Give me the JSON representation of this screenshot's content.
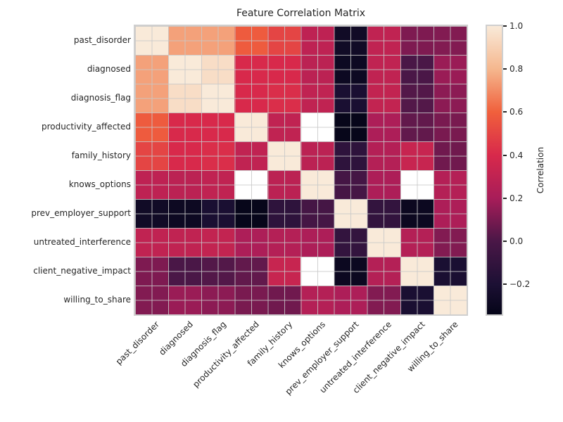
{
  "chart_data": {
    "type": "heatmap",
    "title": "Feature Correlation Matrix",
    "colorbar_label": "Correlation",
    "colorbar_ticks": [
      {
        "value": 1.0,
        "label": "1.0"
      },
      {
        "value": 0.8,
        "label": "0.8"
      },
      {
        "value": 0.6,
        "label": "0.6"
      },
      {
        "value": 0.4,
        "label": "0.4"
      },
      {
        "value": 0.2,
        "label": "0.2"
      },
      {
        "value": 0.0,
        "label": "0.0"
      },
      {
        "value": -0.2,
        "label": "−0.2"
      }
    ],
    "scale": {
      "vmin": -0.34,
      "vmax": 1.0,
      "nan_color": "#ffffff"
    },
    "colormap_name": "rocket",
    "colormap_stops": [
      {
        "v": -0.34,
        "color": "#050518"
      },
      {
        "v": -0.2,
        "color": "#1c1034"
      },
      {
        "v": 0.0,
        "color": "#4a1747"
      },
      {
        "v": 0.2,
        "color": "#a81d59"
      },
      {
        "v": 0.4,
        "color": "#d8294b"
      },
      {
        "v": 0.6,
        "color": "#f0603c"
      },
      {
        "v": 0.8,
        "color": "#f5b78e"
      },
      {
        "v": 1.0,
        "color": "#f9ead9"
      }
    ],
    "features": [
      "past_disorder",
      "diagnosed",
      "diagnosis_flag",
      "productivity_affected",
      "family_history",
      "knows_options",
      "prev_employer_support",
      "untreated_interference",
      "client_negative_impact",
      "willing_to_share"
    ],
    "matrix": [
      [
        1.0,
        0.75,
        0.75,
        0.58,
        0.5,
        0.29,
        -0.27,
        0.3,
        0.11,
        0.12
      ],
      [
        0.75,
        1.0,
        0.95,
        0.4,
        0.4,
        0.28,
        -0.29,
        0.3,
        0.0,
        0.17
      ],
      [
        0.75,
        0.95,
        1.0,
        0.4,
        0.42,
        0.3,
        -0.21,
        0.31,
        0.02,
        0.14
      ],
      [
        0.58,
        0.4,
        0.4,
        1.0,
        0.3,
        null,
        -0.33,
        0.22,
        0.05,
        0.1
      ],
      [
        0.5,
        0.4,
        0.42,
        0.3,
        1.0,
        0.28,
        -0.12,
        0.25,
        0.33,
        0.08
      ],
      [
        0.29,
        0.28,
        0.3,
        null,
        0.28,
        1.0,
        -0.02,
        0.22,
        null,
        0.25
      ],
      [
        -0.27,
        -0.29,
        -0.21,
        -0.33,
        -0.12,
        -0.02,
        1.0,
        -0.1,
        -0.3,
        0.22
      ],
      [
        0.3,
        0.3,
        0.31,
        0.22,
        0.25,
        0.22,
        -0.1,
        1.0,
        0.25,
        0.12
      ],
      [
        0.11,
        0.0,
        0.02,
        0.05,
        0.33,
        null,
        -0.3,
        0.25,
        1.0,
        -0.21
      ],
      [
        0.12,
        0.17,
        0.14,
        0.1,
        0.08,
        0.25,
        0.22,
        0.12,
        -0.21,
        1.0
      ]
    ],
    "grid": true,
    "legend_position": "right-colorbar"
  }
}
